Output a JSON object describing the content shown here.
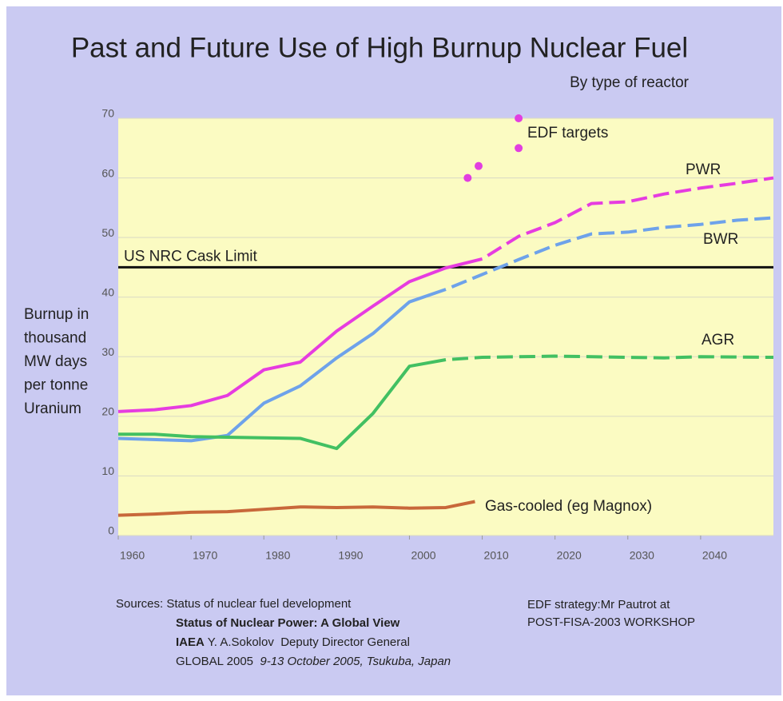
{
  "chart_data": {
    "type": "line",
    "title": "Past and Future Use of High Burnup Nuclear Fuel",
    "subtitle": "By type of reactor",
    "y_label": [
      "Burnup in",
      "thousand",
      "MW days",
      "per tonne",
      "Uranium"
    ],
    "xlim": [
      1960,
      2050
    ],
    "ylim": [
      0,
      70
    ],
    "xticks": [
      1960,
      1970,
      1980,
      1990,
      2000,
      2010,
      2020,
      2030,
      2040
    ],
    "yticks": [
      0,
      10,
      20,
      30,
      40,
      50,
      60,
      70
    ],
    "grid": true,
    "series": [
      {
        "name": "PWR",
        "color": "#e63ce0",
        "dash_from": 2010,
        "x": [
          1960,
          1965,
          1970,
          1975,
          1980,
          1985,
          1990,
          1995,
          2000,
          2005,
          2010,
          2015,
          2020,
          2025,
          2030,
          2035,
          2040,
          2045,
          2050
        ],
        "values": [
          20.8,
          21.1,
          21.8,
          23.5,
          27.8,
          29.1,
          34.3,
          38.5,
          42.6,
          44.9,
          46.4,
          50.2,
          52.5,
          55.7,
          56,
          57.3,
          58.3,
          59.1,
          60
        ]
      },
      {
        "name": "BWR",
        "color": "#6ea2ea",
        "dash_from": 2005,
        "x": [
          1960,
          1970,
          1975,
          1980,
          1985,
          1990,
          1995,
          2000,
          2005,
          2010,
          2015,
          2020,
          2025,
          2030,
          2035,
          2040,
          2045,
          2050
        ],
        "values": [
          16.3,
          15.9,
          16.8,
          22.2,
          25.1,
          29.8,
          33.9,
          39.2,
          41.3,
          43.8,
          46.3,
          48.7,
          50.6,
          50.9,
          51.7,
          52.2,
          52.9,
          53.3
        ]
      },
      {
        "name": "AGR",
        "color": "#42c062",
        "dash_from": 2005,
        "x": [
          1960,
          1965,
          1970,
          1975,
          1980,
          1985,
          1990,
          1995,
          2000,
          2005,
          2010,
          2020,
          2030,
          2035,
          2040,
          2050
        ],
        "values": [
          17,
          17,
          16.6,
          16.5,
          16.4,
          16.3,
          14.6,
          20.5,
          28.4,
          29.5,
          29.9,
          30.1,
          29.9,
          29.8,
          30,
          29.9
        ]
      },
      {
        "name": "Gas-cooled (eg Magnox)",
        "color": "#c8683a",
        "x": [
          1960,
          1965,
          1970,
          1975,
          1980,
          1985,
          1990,
          1995,
          2000,
          2005,
          2009
        ],
        "values": [
          3.4,
          3.6,
          3.9,
          4.0,
          4.4,
          4.8,
          4.7,
          4.8,
          4.6,
          4.7,
          5.7
        ]
      }
    ],
    "scatter": {
      "name": "EDF targets",
      "color": "#e23ee0",
      "x": [
        2008,
        2009.5,
        2015,
        2015
      ],
      "values": [
        60,
        62,
        70,
        65
      ]
    },
    "reference_line": {
      "value": 45,
      "label": "US NRC Cask Limit",
      "color": "#111111"
    }
  },
  "footer": {
    "sources": [
      [
        {
          "text": "Sources: Status of nuclear fuel development"
        }
      ],
      [
        {
          "text": "Status of Nuclear Power: A Global View",
          "bold": true
        }
      ],
      [
        {
          "text": "IAEA",
          "bold": true
        },
        {
          "text": " Y. A.Sokolov  Deputy Director General"
        }
      ],
      [
        {
          "text": "GLOBAL 2005  "
        },
        {
          "text": "9-13 October 2005, Tsukuba, Japan",
          "italic": true
        }
      ]
    ],
    "edf_note": [
      "EDF strategy:Mr Pautrot at",
      "POST-FISA-2003 WORKSHOP"
    ]
  }
}
